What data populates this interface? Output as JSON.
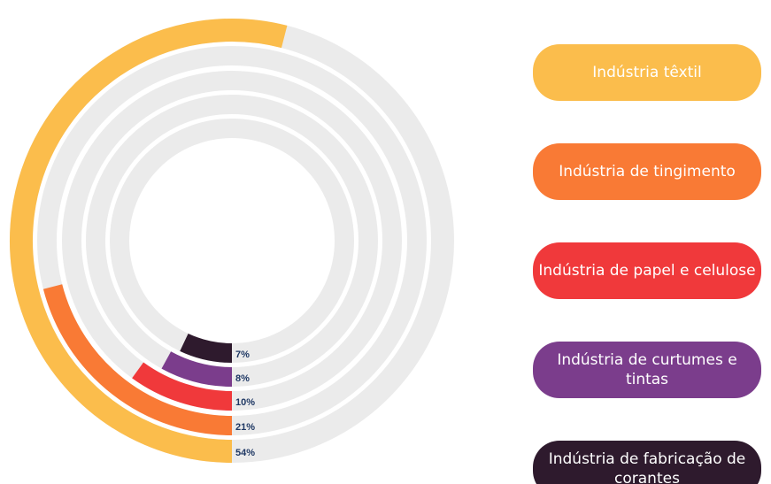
{
  "chart_data": {
    "type": "radialBar",
    "categories": [
      "Indústria têxtil",
      "Indústria de tingimento",
      "Indústria de papel e celulose",
      "Indústria de curtumes e tintas",
      "Indústria de fabricação de corantes"
    ],
    "values": [
      54,
      21,
      10,
      8,
      7
    ],
    "value_labels": [
      "54%",
      "21%",
      "10%",
      "8%",
      "7%"
    ],
    "colors": [
      "#fbbd4c",
      "#f97a35",
      "#f0393b",
      "#7b3d8c",
      "#2e1a2d"
    ],
    "ylim": [
      0,
      100
    ]
  }
}
